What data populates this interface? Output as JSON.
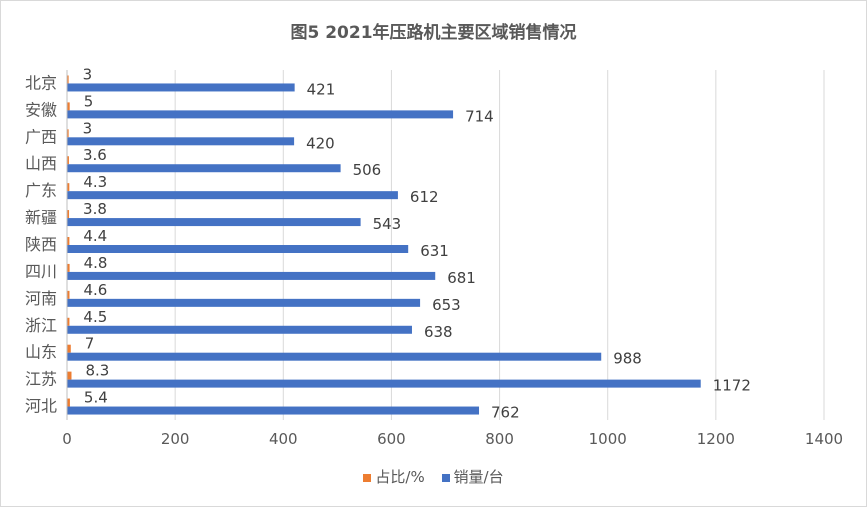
{
  "chart_data": {
    "type": "bar",
    "orientation": "horizontal",
    "title": "图5  2021年压路机主要区域销售情况",
    "categories": [
      "北京",
      "安徽",
      "广西",
      "山西",
      "广东",
      "新疆",
      "陕西",
      "四川",
      "河南",
      "浙江",
      "山东",
      "江苏",
      "河北"
    ],
    "series": [
      {
        "name": "占比/%",
        "color": "#ed7d31",
        "values": [
          3,
          5,
          3,
          3.6,
          4.3,
          3.8,
          4.4,
          4.8,
          4.6,
          4.5,
          7,
          8.3,
          5.4
        ]
      },
      {
        "name": "销量/台",
        "color": "#4472c4",
        "values": [
          421,
          714,
          420,
          506,
          612,
          543,
          631,
          681,
          653,
          638,
          988,
          1172,
          762
        ]
      }
    ],
    "xlim": [
      0,
      1400
    ],
    "xticks": [
      0,
      200,
      400,
      600,
      800,
      1000,
      1200,
      1400
    ],
    "grid": true,
    "legend_position": "bottom"
  }
}
